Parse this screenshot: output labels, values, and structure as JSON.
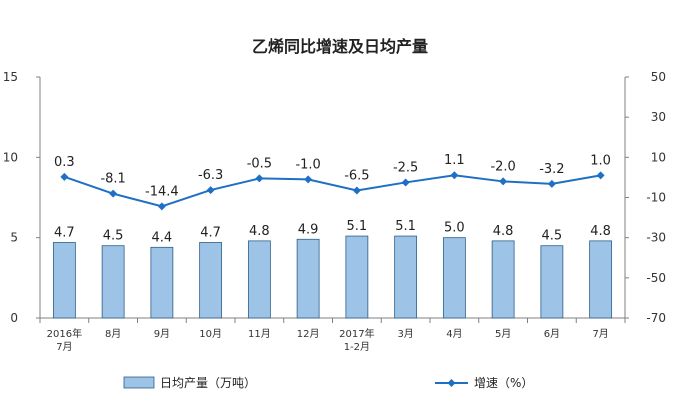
{
  "chart_data": {
    "type": "bar+line",
    "title": "乙烯同比增速及日均产量",
    "categories": [
      [
        "2016年",
        "7月"
      ],
      [
        "8月"
      ],
      [
        "9月"
      ],
      [
        "10月"
      ],
      [
        "11月"
      ],
      [
        "12月"
      ],
      [
        "2017年",
        "1-2月"
      ],
      [
        "3月"
      ],
      [
        "4月"
      ],
      [
        "5月"
      ],
      [
        "6月"
      ],
      [
        "7月"
      ]
    ],
    "series": [
      {
        "name": "日均产量（万吨）",
        "type": "bar",
        "axis": "left",
        "values": [
          4.7,
          4.5,
          4.4,
          4.7,
          4.8,
          4.9,
          5.1,
          5.1,
          5.0,
          4.8,
          4.5,
          4.8
        ],
        "labels": [
          "4.7",
          "4.5",
          "4.4",
          "4.7",
          "4.8",
          "4.9",
          "5.1",
          "5.1",
          "5.0",
          "4.8",
          "4.5",
          "4.8"
        ],
        "color": "#9DC3E6"
      },
      {
        "name": "增速（%）",
        "type": "line",
        "axis": "right",
        "values": [
          0.3,
          -8.1,
          -14.4,
          -6.3,
          -0.5,
          -1.0,
          -6.5,
          -2.5,
          1.1,
          -2.0,
          -3.2,
          1.0
        ],
        "labels": [
          "0.3",
          "-8.1",
          "-14.4",
          "-6.3",
          "-0.5",
          "-1.0",
          "-6.5",
          "-2.5",
          "1.1",
          "-2.0",
          "-3.2",
          "1.0"
        ],
        "color": "#1F6FC5"
      }
    ],
    "left_axis": {
      "min": 0,
      "max": 15,
      "ticks": [
        "0",
        "5",
        "10",
        "15"
      ]
    },
    "right_axis": {
      "min": -70,
      "max": 50,
      "ticks": [
        "50",
        "30",
        "10",
        "-10",
        "-30",
        "-50",
        "-70"
      ]
    },
    "grid": false,
    "legend": "bottom"
  }
}
